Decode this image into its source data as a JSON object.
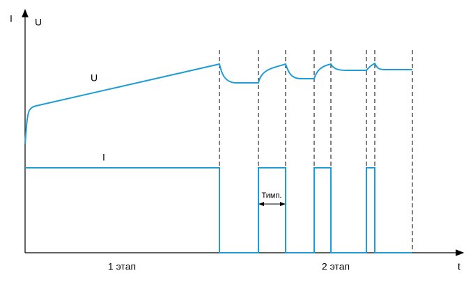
{
  "axes": {
    "y_label_current": "I",
    "y_label_voltage": "U",
    "x_label": "t"
  },
  "curves": {
    "voltage_label": "U",
    "current_label": "I"
  },
  "annotation": "Тимп.",
  "stages": [
    "1 этап",
    "2 этап"
  ]
}
